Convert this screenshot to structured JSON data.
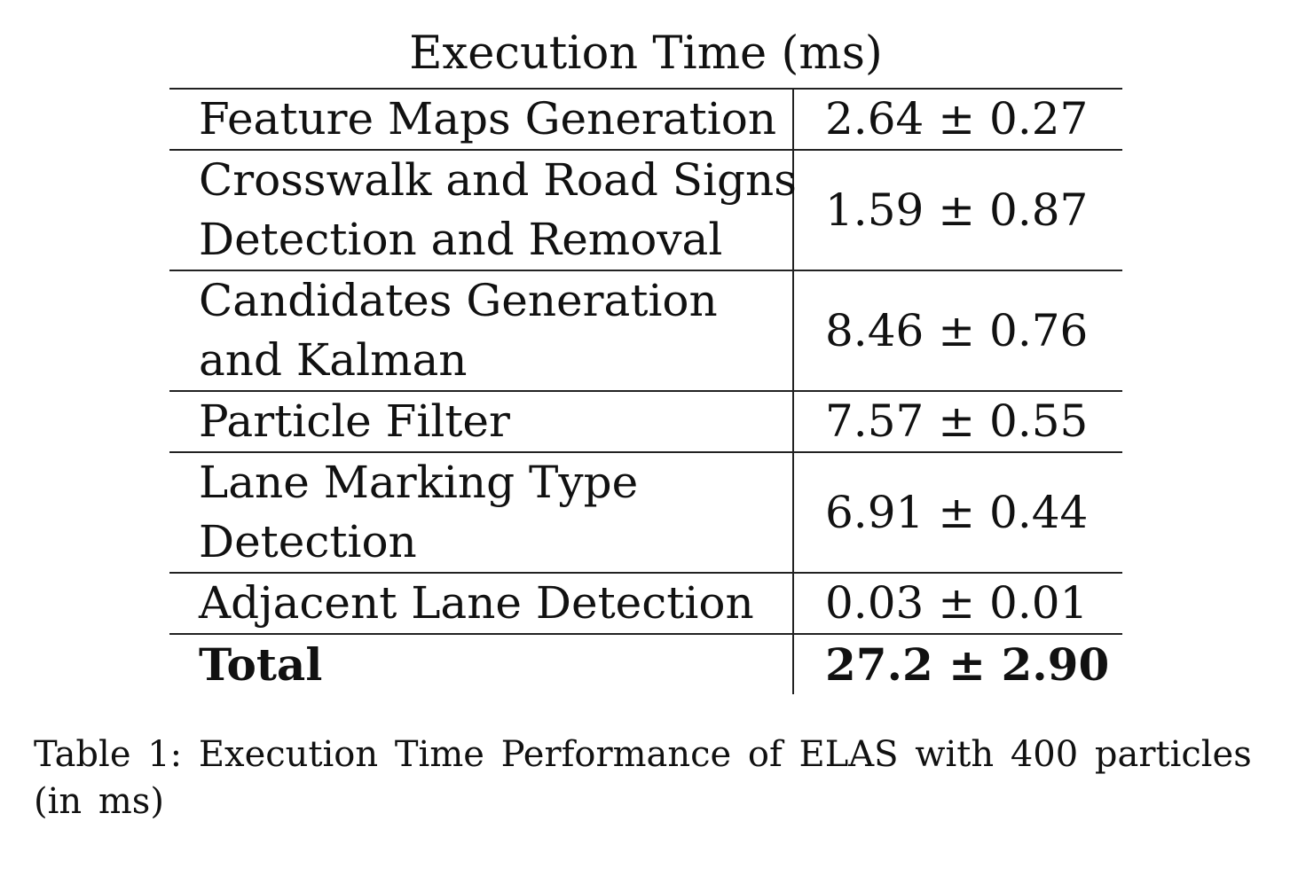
{
  "table": {
    "title": "Execution Time (ms)",
    "rows": [
      {
        "label_line1": "Feature Maps Generation",
        "label_line2": "",
        "value": "2.64 ± 0.27"
      },
      {
        "label_line1": "Crosswalk and Road Signs",
        "label_line2": "Detection and Removal",
        "value": "1.59 ± 0.87"
      },
      {
        "label_line1": "Candidates Generation",
        "label_line2": "and Kalman",
        "value": "8.46 ± 0.76"
      },
      {
        "label_line1": "Particle Filter",
        "label_line2": "",
        "value": "7.57 ± 0.55"
      },
      {
        "label_line1": "Lane Marking Type",
        "label_line2": "Detection",
        "value": "6.91 ± 0.44"
      },
      {
        "label_line1": "Adjacent Lane Detection",
        "label_line2": "",
        "value": "0.03 ± 0.01"
      }
    ],
    "total": {
      "label": "Total",
      "value": "27.2 ± 2.90"
    }
  },
  "caption": "Table 1: Execution Time Performance of ELAS with 400 particles (in ms)"
}
